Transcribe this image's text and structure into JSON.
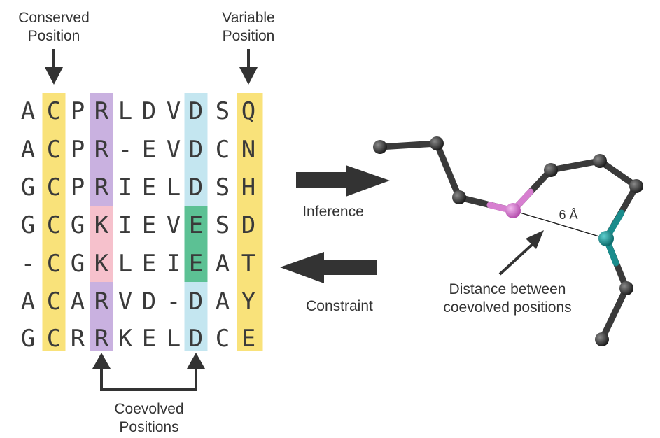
{
  "labels": {
    "conserved": [
      "Conserved",
      "Position"
    ],
    "variable": [
      "Variable",
      "Position"
    ],
    "coevolved": [
      "Coevolved",
      "Positions"
    ],
    "inference": "Inference",
    "constraint": "Constraint",
    "distance_value": "6 Å",
    "distance_caption": [
      "Distance between",
      "coevolved positions"
    ]
  },
  "alignment": [
    [
      "A",
      "C",
      "P",
      "R",
      "L",
      "D",
      "V",
      "D",
      "S",
      "Q"
    ],
    [
      "A",
      "C",
      "P",
      "R",
      "-",
      "E",
      "V",
      "D",
      "C",
      "N"
    ],
    [
      "G",
      "C",
      "P",
      "R",
      "I",
      "E",
      "L",
      "D",
      "S",
      "H"
    ],
    [
      "G",
      "C",
      "G",
      "K",
      "I",
      "E",
      "V",
      "E",
      "S",
      "D"
    ],
    [
      "-",
      "C",
      "G",
      "K",
      "L",
      "E",
      "I",
      "E",
      "A",
      "T"
    ],
    [
      "A",
      "C",
      "A",
      "R",
      "V",
      "D",
      "-",
      "D",
      "A",
      "Y"
    ],
    [
      "G",
      "C",
      "R",
      "R",
      "K",
      "E",
      "L",
      "D",
      "C",
      "E"
    ]
  ],
  "colors": {
    "conserved": "#f9e27a",
    "variable": "#f9e27a",
    "coevolved_r": "#c9b1e0",
    "coevolved_k": "#f6c1cc",
    "coevolved_d": "#c4e6f0",
    "coevolved_e": "#5cc194",
    "atom": "#3a3a3a",
    "atom_pink": "#d77fd0",
    "atom_teal": "#1a8c8c",
    "arrow": "#333333"
  }
}
